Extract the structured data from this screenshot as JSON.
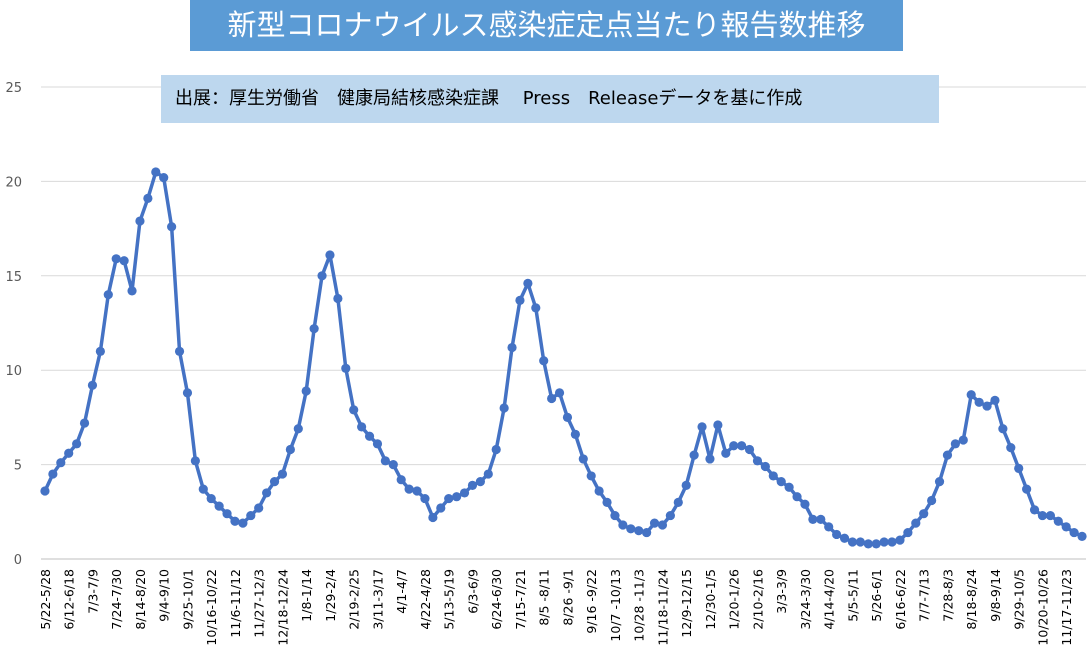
{
  "chart_data": {
    "type": "line",
    "title": "新型コロナウイルス感染症定点当たり報告数推移",
    "subtitle": "出展：厚生労働省　健康局結核感染症課　 Press　Releaseデータを基に作成",
    "xlabel": "",
    "ylabel": "",
    "ylim": [
      0,
      25
    ],
    "yticks": [
      0,
      5,
      10,
      15,
      20,
      25
    ],
    "grid": true,
    "legend": "none",
    "color": "#4472c4",
    "x_tick_labels": [
      "5/22-5/28",
      "6/12-6/18",
      "7/3-7/9",
      "7/24-7/30",
      "8/14-8/20",
      "9/4-9/10",
      "9/25-10/1",
      "10/16-10/22",
      "11/6-11/12",
      "11/27-12/3",
      "12/18-12/24",
      "1/8-1/14",
      "1/29-2/4",
      "2/19-2/25",
      "3/11-3/17",
      "4/1-4/7",
      "4/22-4/28",
      "5/13-5/19",
      "6/3-6/9",
      "6/24-6/30",
      "7/15-7/21",
      "8/5 -8/11",
      "8/26 -9/1",
      "9/16 -9/22",
      "10/7 -10/13",
      "10/28 -11/3",
      "11/18-11/24",
      "12/9-12/15",
      "12/30-1/5",
      "1/20-1/26",
      "2/10-2/16",
      "3/3-3/9",
      "3/24-3/30",
      "4/14-4/20",
      "5/5-5/11",
      "5/26-6/1",
      "6/16-6/22",
      "7/7-7/13",
      "7/28-8/3",
      "8/18-8/24",
      "9/8-9/14",
      "9/29-10/5",
      "10/20-10/26",
      "11/17-11/23"
    ],
    "values": [
      3.6,
      4.5,
      5.1,
      5.6,
      6.1,
      7.2,
      9.2,
      11.0,
      14.0,
      15.9,
      15.8,
      14.2,
      17.9,
      19.1,
      20.5,
      20.2,
      17.6,
      11.0,
      8.8,
      5.2,
      3.7,
      3.2,
      2.8,
      2.4,
      2.0,
      1.9,
      2.3,
      2.7,
      3.5,
      4.1,
      4.5,
      5.8,
      6.9,
      8.9,
      12.2,
      15.0,
      16.1,
      13.8,
      10.1,
      7.9,
      7.0,
      6.5,
      6.1,
      5.2,
      5.0,
      4.2,
      3.7,
      3.6,
      3.2,
      2.2,
      2.7,
      3.2,
      3.3,
      3.5,
      3.9,
      4.1,
      4.5,
      5.8,
      8.0,
      11.2,
      13.7,
      14.6,
      13.3,
      10.5,
      8.5,
      8.8,
      7.5,
      6.6,
      5.3,
      4.4,
      3.6,
      3.0,
      2.3,
      1.8,
      1.6,
      1.5,
      1.4,
      1.9,
      1.8,
      2.3,
      3.0,
      3.9,
      5.5,
      7.0,
      5.3,
      7.1,
      5.6,
      6.0,
      6.0,
      5.8,
      5.2,
      4.9,
      4.4,
      4.1,
      3.8,
      3.3,
      2.9,
      2.1,
      2.1,
      1.7,
      1.3,
      1.1,
      0.9,
      0.9,
      0.8,
      0.8,
      0.9,
      0.9,
      1.0,
      1.4,
      1.9,
      2.4,
      3.1,
      4.1,
      5.5,
      6.1,
      6.3,
      8.7,
      8.3,
      8.1,
      8.4,
      6.9,
      5.9,
      4.8,
      3.7,
      2.6,
      2.3,
      2.3,
      2.0,
      1.7,
      1.4,
      1.2
    ]
  }
}
